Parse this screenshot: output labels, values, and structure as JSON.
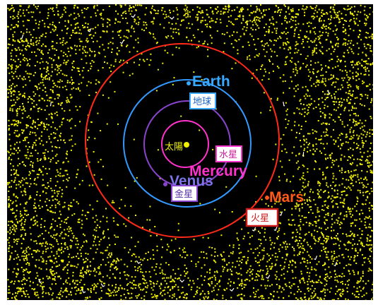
{
  "sun": {
    "label_ja": "太陽",
    "color": "#f2f200"
  },
  "planets": [
    {
      "key": "mercury",
      "label_en": "Mercury",
      "label_ja": "水星",
      "color": "#ff33cc"
    },
    {
      "key": "venus",
      "label_en": "Venus",
      "label_ja": "金星",
      "color": "#8844cc"
    },
    {
      "key": "earth",
      "label_en": "Earth",
      "label_ja": "地球",
      "color": "#3399ff"
    },
    {
      "key": "mars",
      "label_en": "Mars",
      "label_ja": "火星",
      "color": "#ff2a1a"
    }
  ],
  "colors": {
    "background": "#000000",
    "asteroid": "#f2f200",
    "comet": "#ffffff",
    "mercury_text": "#ff33cc",
    "venus_text": "#7b73e6",
    "earth_text": "#39a8ff",
    "mars_text": "#ff5a1a"
  }
}
